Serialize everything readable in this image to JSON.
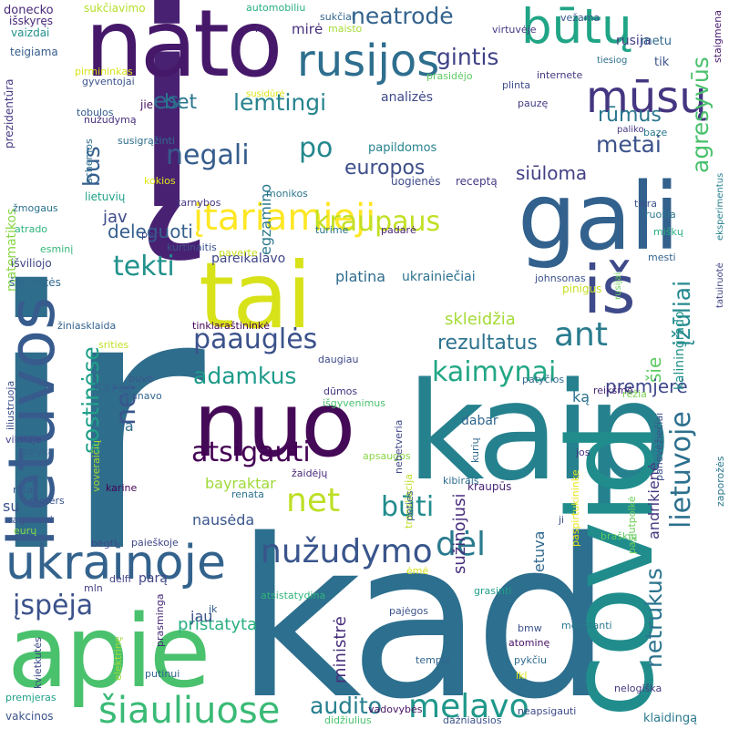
{
  "words": [
    {
      "text": "ir",
      "color": "#2f6d8c"
    },
    {
      "text": "kad",
      "color": "#2d6f8e"
    },
    {
      "text": "į",
      "color": "#482173"
    },
    {
      "text": "nato",
      "color": "#46186a"
    },
    {
      "text": "gali",
      "color": "#32618d"
    },
    {
      "text": "tai",
      "color": "#d8e219"
    },
    {
      "text": "nuo",
      "color": "#440a57"
    },
    {
      "text": "kaip",
      "color": "#26818e"
    },
    {
      "text": "apie",
      "color": "#4ac16d"
    },
    {
      "text": "covid",
      "color": "#208d8c"
    },
    {
      "text": "lietuvos",
      "color": "#375b8d"
    },
    {
      "text": "iš",
      "color": "#3e4a89"
    },
    {
      "text": "rusijos",
      "color": "#2e6e8e"
    },
    {
      "text": "būtų",
      "color": "#20a486"
    },
    {
      "text": "mūsų",
      "color": "#453681"
    },
    {
      "text": "ukrainoje",
      "color": "#33638d"
    },
    {
      "text": "šiauliuose",
      "color": "#3aba76"
    },
    {
      "text": "melavo",
      "color": "#1f988b"
    },
    {
      "text": "audito",
      "color": "#277f8e"
    },
    {
      "text": "įtariamieji",
      "color": "#fde725"
    },
    {
      "text": "nužudymo",
      "color": "#39558c"
    },
    {
      "text": "paauglės",
      "color": "#3b528b"
    },
    {
      "text": "atsigauti",
      "color": "#440154"
    },
    {
      "text": "adamkus",
      "color": "#1e9b8a"
    },
    {
      "text": "kaimynai",
      "color": "#22a785"
    },
    {
      "text": "negali",
      "color": "#365c8d"
    },
    {
      "text": "lemtingi",
      "color": "#26838e"
    },
    {
      "text": "neatrodė",
      "color": "#33628d"
    },
    {
      "text": "gintis",
      "color": "#404387"
    },
    {
      "text": "kraupaus",
      "color": "#c2df23"
    },
    {
      "text": "tekti",
      "color": "#21918c"
    },
    {
      "text": "net",
      "color": "#bddf26"
    },
    {
      "text": "būti",
      "color": "#228c8d"
    },
    {
      "text": "dėl",
      "color": "#297a8e"
    },
    {
      "text": "ant",
      "color": "#297b8e"
    },
    {
      "text": "įspėja",
      "color": "#3b528b"
    },
    {
      "text": "lietuvoje",
      "color": "#2d708e"
    },
    {
      "text": "agresyvūs",
      "color": "#4ac16d"
    },
    {
      "text": "metai",
      "color": "#3b528b"
    },
    {
      "text": "po",
      "color": "#24878e"
    },
    {
      "text": "bus",
      "color": "#355e8d"
    },
    {
      "text": "es",
      "color": "#306a8e"
    },
    {
      "text": "bet",
      "color": "#2a768e"
    },
    {
      "text": "europos",
      "color": "#3d4e8a"
    },
    {
      "text": "siūloma",
      "color": "#423f85"
    },
    {
      "text": "rūmus",
      "color": "#2a768e"
    },
    {
      "text": "nei",
      "color": "#39568c"
    },
    {
      "text": "sostinėse",
      "color": "#1fa088"
    },
    {
      "text": "rezultatus",
      "color": "#2c728e"
    },
    {
      "text": "netrukus",
      "color": "#2b748e"
    },
    {
      "text": "įžūliai",
      "color": "#23898e"
    },
    {
      "text": "šie",
      "color": "#5ec962"
    },
    {
      "text": "premjerė",
      "color": "#3f4889"
    },
    {
      "text": "deleguoti",
      "color": "#355f8d"
    },
    {
      "text": "egzamino",
      "color": "#2a788e"
    },
    {
      "text": "jav",
      "color": "#3e4c8a"
    },
    {
      "text": "platina",
      "color": "#2f6b8e"
    },
    {
      "text": "pareikalavo",
      "color": "#404688"
    },
    {
      "text": "ukrainiečiai",
      "color": "#2c728e"
    },
    {
      "text": "skleidžia",
      "color": "#a5db36"
    },
    {
      "text": "kaliningrado",
      "color": "#21918c"
    },
    {
      "text": "andrikienė",
      "color": "#453781"
    },
    {
      "text": "sužinojusi",
      "color": "#472d7b"
    },
    {
      "text": "ministrė",
      "color": "#472d7b"
    },
    {
      "text": "pristatyta",
      "color": "#29af7f"
    },
    {
      "text": "bayraktar",
      "color": "#a0da39"
    },
    {
      "text": "nausėda",
      "color": "#39568c"
    },
    {
      "text": "karas",
      "color": "#32658e"
    },
    {
      "text": "viena",
      "color": "#2f6c8e"
    },
    {
      "text": "su",
      "color": "#3b528b"
    },
    {
      "text": "jau",
      "color": "#3b528b"
    },
    {
      "text": "parą",
      "color": "#404688"
    },
    {
      "text": "matematikos",
      "color": "#8bd646"
    },
    {
      "text": "pinigus",
      "color": "#c8e020"
    },
    {
      "text": "prezidentūra",
      "color": "#443a83"
    },
    {
      "text": "lietuva",
      "color": "#31688e"
    },
    {
      "text": "ką",
      "color": "#2c728e"
    },
    {
      "text": "dabar",
      "color": "#31678e"
    },
    {
      "text": "kraupūs",
      "color": "#482475"
    },
    {
      "text": "analizės",
      "color": "#3e4989"
    },
    {
      "text": "rusija",
      "color": "#423f85"
    },
    {
      "text": "tik",
      "color": "#3b528b"
    },
    {
      "text": "metu",
      "color": "#31688e"
    },
    {
      "text": "papildomos",
      "color": "#26828e"
    },
    {
      "text": "uogienės",
      "color": "#3e4a89"
    },
    {
      "text": "receptą",
      "color": "#443a83"
    },
    {
      "text": "lietuvių",
      "color": "#1fa187"
    },
    {
      "text": "sukčiavimo",
      "color": "#b5de2b"
    },
    {
      "text": "automobiliu",
      "color": "#29af7f"
    },
    {
      "text": "sukčiai",
      "color": "#32658e"
    },
    {
      "text": "virtuvėje",
      "color": "#453781"
    },
    {
      "text": "vežama",
      "color": "#39568c"
    },
    {
      "text": "staigmena",
      "color": "#481b6d"
    },
    {
      "text": "donecko",
      "color": "#482878"
    },
    {
      "text": "išskyręs",
      "color": "#482878"
    },
    {
      "text": "vaizdai",
      "color": "#21918c"
    },
    {
      "text": "teigiama",
      "color": "#365c8d"
    },
    {
      "text": "pirmininkas",
      "color": "#d8e219"
    },
    {
      "text": "gyventojai",
      "color": "#3b528b"
    },
    {
      "text": "nr",
      "color": "#482475"
    },
    {
      "text": "mirė",
      "color": "#462f7c"
    },
    {
      "text": "maisto",
      "color": "#a5db36"
    },
    {
      "text": "prasidėjo",
      "color": "#5ec962"
    },
    {
      "text": "internete",
      "color": "#453781"
    },
    {
      "text": "tiesiog",
      "color": "#2e6f8e"
    },
    {
      "text": "plinta",
      "color": "#3e4c8a"
    },
    {
      "text": "pauzę",
      "color": "#433d84"
    },
    {
      "text": "paliko",
      "color": "#443983"
    },
    {
      "text": "baze",
      "color": "#2a778e"
    },
    {
      "text": "susidūrė",
      "color": "#dde318"
    },
    {
      "text": "tobulos",
      "color": "#365d8d"
    },
    {
      "text": "nužudymą",
      "color": "#46327e"
    },
    {
      "text": "jie",
      "color": "#471063"
    },
    {
      "text": "schemos",
      "color": "#2e6f8e"
    },
    {
      "text": "susigrąžinti",
      "color": "#2e6e8e"
    },
    {
      "text": "kokios",
      "color": "#e2e418"
    },
    {
      "text": "tarnybos",
      "color": "#453781"
    },
    {
      "text": "monikos",
      "color": "#2b758e"
    },
    {
      "text": "tikra",
      "color": "#3b528b"
    },
    {
      "text": "miškų",
      "color": "#29af7f"
    },
    {
      "text": "ruošia",
      "color": "#2a768e"
    },
    {
      "text": "eksperimentus",
      "color": "#27808e"
    },
    {
      "text": "mesti",
      "color": "#33638d"
    },
    {
      "text": "tatuiruotė",
      "color": "#414487"
    },
    {
      "text": "žmogaus",
      "color": "#2c718e"
    },
    {
      "text": "atrado",
      "color": "#2fb47c"
    },
    {
      "text": "esminį",
      "color": "#35b779"
    },
    {
      "text": "per",
      "color": "#3e4a89"
    },
    {
      "text": "kurtinaitis",
      "color": "#3b528b"
    },
    {
      "text": "paverte",
      "color": "#c8e020"
    },
    {
      "text": "turime",
      "color": "#2a768e"
    },
    {
      "text": "padarė",
      "color": "#482475"
    },
    {
      "text": "išviliojo",
      "color": "#404688"
    },
    {
      "text": "šiaulietės",
      "color": "#31688e"
    },
    {
      "text": "johnsonas",
      "color": "#3b528b"
    },
    {
      "text": "rusijai",
      "color": "#6ccd5a"
    },
    {
      "text": "žiniasklaida",
      "color": "#33628d"
    },
    {
      "text": "tinklaraštininkė",
      "color": "#440154"
    },
    {
      "text": "iliustruoja",
      "color": "#3c4f8a"
    },
    {
      "text": "srities",
      "color": "#c0df25"
    },
    {
      "text": "daugiau",
      "color": "#3e4a89"
    },
    {
      "text": "patyčios",
      "color": "#31688e"
    },
    {
      "text": "reikšmė",
      "color": "#482878"
    },
    {
      "text": "buvo",
      "color": "#39568c"
    },
    {
      "text": "planavo",
      "color": "#32648e"
    },
    {
      "text": "išgyvenimus",
      "color": "#4ac16d"
    },
    {
      "text": "dūmos",
      "color": "#453581"
    },
    {
      "text": "rėžia",
      "color": "#7ad151"
    },
    {
      "text": "vilniuje",
      "color": "#3f4788"
    },
    {
      "text": "dalyką",
      "color": "#33638d"
    },
    {
      "text": "voveraičių",
      "color": "#a8db34"
    },
    {
      "text": "žaidėjų",
      "color": "#482878"
    },
    {
      "text": "apsaugos",
      "color": "#8bd646"
    },
    {
      "text": "nebetveria",
      "color": "#3f4788"
    },
    {
      "text": "jos",
      "color": "#46337f"
    },
    {
      "text": "transliacija",
      "color": "#bddf26"
    },
    {
      "text": "kurių",
      "color": "#31688e"
    },
    {
      "text": "panevėžiečiai",
      "color": "#3b528b"
    },
    {
      "text": "zaporožės",
      "color": "#2a788e"
    },
    {
      "text": "rytas",
      "color": "#365d8d"
    },
    {
      "text": "moters",
      "color": "#3b528b"
    },
    {
      "text": "karine",
      "color": "#440154"
    },
    {
      "text": "renata",
      "color": "#2c728e"
    },
    {
      "text": "kibirais",
      "color": "#2f6c8e"
    },
    {
      "text": "paspirtukininke",
      "color": "#e7e419"
    },
    {
      "text": "pasiutpolkė",
      "color": "#6ece58"
    },
    {
      "text": "raginami",
      "color": "#3b528b"
    },
    {
      "text": "eurų",
      "color": "#8bd646"
    },
    {
      "text": "peties",
      "color": "#365d8d"
    },
    {
      "text": "ji",
      "color": "#3b528b"
    },
    {
      "text": "braškių",
      "color": "#5ec962"
    },
    {
      "text": "bėgti",
      "color": "#3e4989"
    },
    {
      "text": "paieškoje",
      "color": "#3f4788"
    },
    {
      "text": "atsistatydina",
      "color": "#2fb47c"
    },
    {
      "text": "grasinti",
      "color": "#1f9e89"
    },
    {
      "text": "mln",
      "color": "#433e85"
    },
    {
      "text": "delfi",
      "color": "#414487"
    },
    {
      "text": "ėmė",
      "color": "#d5e21a"
    },
    {
      "text": "elektrinę",
      "color": "#a0da39"
    },
    {
      "text": "jk",
      "color": "#355f8d"
    },
    {
      "text": "pajėgos",
      "color": "#3b528b"
    },
    {
      "text": "kvietkutės",
      "color": "#3f4889"
    },
    {
      "text": "prasminga",
      "color": "#482878"
    },
    {
      "text": "mėgstanti",
      "color": "#2a788e"
    },
    {
      "text": "bmw",
      "color": "#3b528b"
    },
    {
      "text": "atominę",
      "color": "#471063"
    },
    {
      "text": "tempia",
      "color": "#32648e"
    },
    {
      "text": "pykčiu",
      "color": "#2f6b8e"
    },
    {
      "text": "lkl",
      "color": "#dde318"
    },
    {
      "text": "putinui",
      "color": "#33638d"
    },
    {
      "text": "premjeras",
      "color": "#1fa088"
    },
    {
      "text": "nelogiška",
      "color": "#453781"
    },
    {
      "text": "vadovybės",
      "color": "#481467"
    },
    {
      "text": "neapsigauti",
      "color": "#3e4a89"
    },
    {
      "text": "klaidingą",
      "color": "#2a788e"
    },
    {
      "text": "vakcinos",
      "color": "#3b528b"
    },
    {
      "text": "didžiulius",
      "color": "#4ac16d"
    },
    {
      "text": "dažniausios",
      "color": "#3b528b"
    }
  ]
}
